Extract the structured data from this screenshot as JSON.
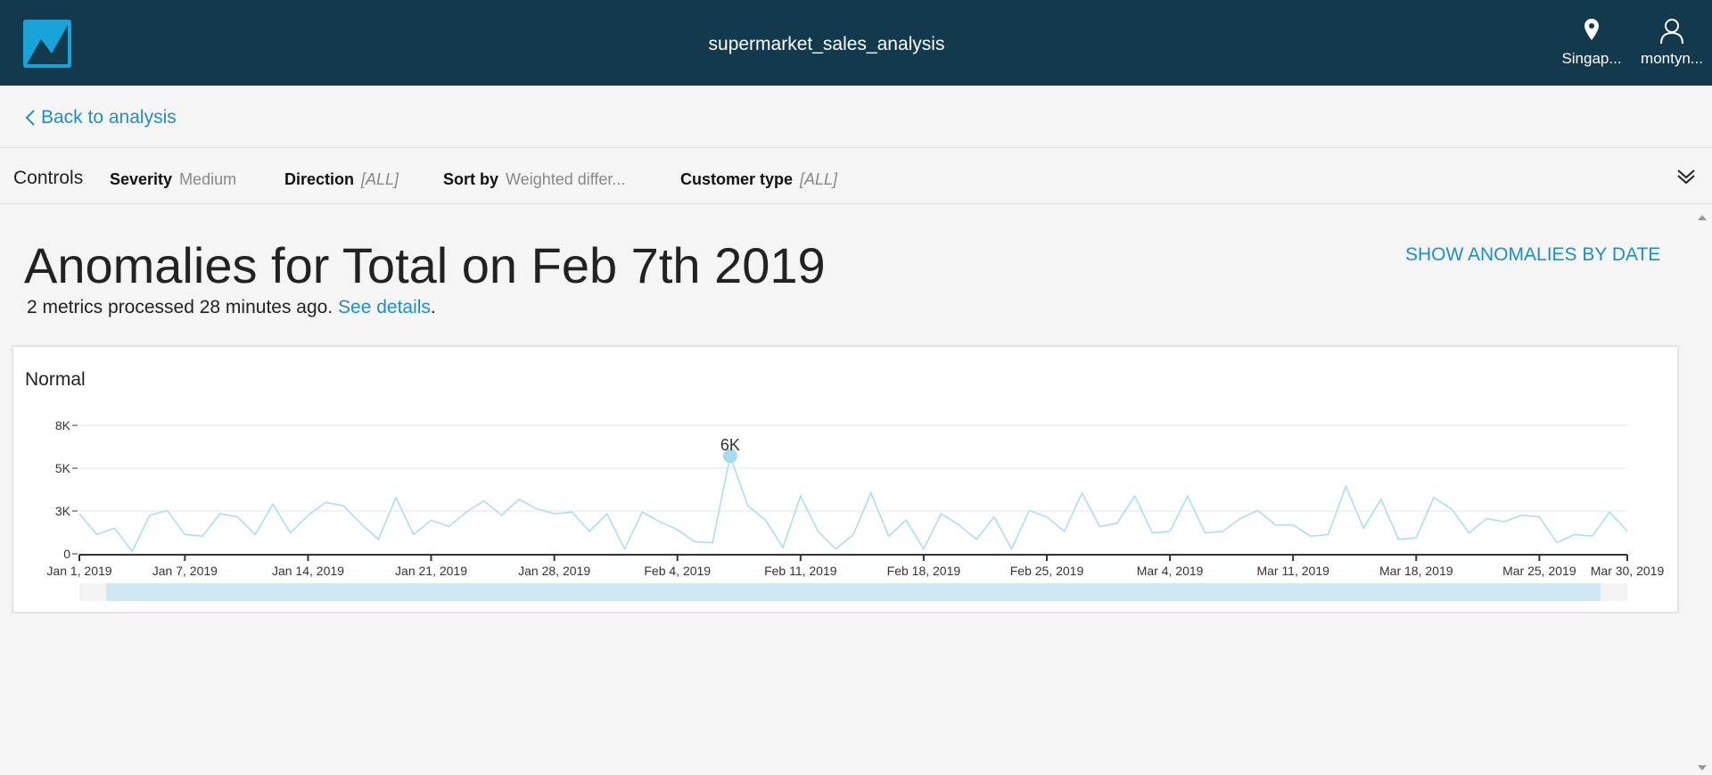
{
  "header": {
    "title": "supermarket_sales_analysis",
    "region_label": "Singap...",
    "region_icon": "location-pin-icon",
    "user_label": "montyn...",
    "user_icon": "user-icon",
    "bg_color": "#123a4c"
  },
  "nav": {
    "back_label": "Back to analysis"
  },
  "controls": {
    "label": "Controls",
    "items": [
      {
        "name": "Severity",
        "value": "Medium"
      },
      {
        "name": "Direction",
        "value": "[ALL]"
      },
      {
        "name": "Sort by",
        "value": "Weighted differ..."
      },
      {
        "name": "Customer type",
        "value": "[ALL]"
      }
    ]
  },
  "page": {
    "heading": "Anomalies for Total on Feb 7th 2019",
    "subtitle_text": "2 metrics processed 28 minutes ago.",
    "details_link": "See details",
    "subtitle_end": ".",
    "show_by_date": "SHOW ANOMALIES BY DATE"
  },
  "card": {
    "title": "Normal"
  },
  "chart_data": {
    "type": "line",
    "title": "Normal",
    "xlabel": "",
    "ylabel": "",
    "series_color": "#a6dcef",
    "ylim": [
      0,
      8000
    ],
    "y_ticks": [
      {
        "value": 0,
        "label": "0"
      },
      {
        "value": 2667,
        "label": "3K"
      },
      {
        "value": 5333,
        "label": "5K"
      },
      {
        "value": 8000,
        "label": "8K"
      }
    ],
    "x_ticks": [
      {
        "day": 0,
        "label": "Jan 1, 2019"
      },
      {
        "day": 6,
        "label": "Jan 7, 2019"
      },
      {
        "day": 13,
        "label": "Jan 14, 2019"
      },
      {
        "day": 20,
        "label": "Jan 21, 2019"
      },
      {
        "day": 27,
        "label": "Jan 28, 2019"
      },
      {
        "day": 34,
        "label": "Feb 4, 2019"
      },
      {
        "day": 41,
        "label": "Feb 11, 2019"
      },
      {
        "day": 48,
        "label": "Feb 18, 2019"
      },
      {
        "day": 55,
        "label": "Feb 25, 2019"
      },
      {
        "day": 62,
        "label": "Mar 4, 2019"
      },
      {
        "day": 69,
        "label": "Mar 11, 2019"
      },
      {
        "day": 76,
        "label": "Mar 18, 2019"
      },
      {
        "day": 83,
        "label": "Mar 25, 2019"
      },
      {
        "day": 88,
        "label": "Mar 30, 2019"
      }
    ],
    "values": [
      2500,
      1200,
      1600,
      150,
      2400,
      2700,
      1200,
      1100,
      2500,
      2300,
      1200,
      3100,
      1300,
      2400,
      3200,
      3000,
      1900,
      900,
      3500,
      1200,
      2100,
      1700,
      2600,
      3300,
      2400,
      3400,
      2800,
      2500,
      2600,
      1400,
      2500,
      300,
      2600,
      2000,
      1500,
      750,
      700,
      6100,
      3000,
      2100,
      400,
      3600,
      1400,
      300,
      1200,
      3800,
      1100,
      2100,
      300,
      2500,
      1800,
      900,
      2300,
      300,
      2700,
      2300,
      1400,
      3800,
      1700,
      1900,
      3600,
      1300,
      1400,
      3600,
      1300,
      1400,
      2200,
      2700,
      1800,
      1800,
      1100,
      1200,
      4200,
      1600,
      3400,
      900,
      1000,
      3500,
      2800,
      1300,
      2200,
      2000,
      2400,
      2300,
      700,
      1200,
      1100,
      2600,
      1400
    ],
    "anomaly": {
      "day": 37,
      "value": 6100,
      "label": "6K"
    }
  }
}
